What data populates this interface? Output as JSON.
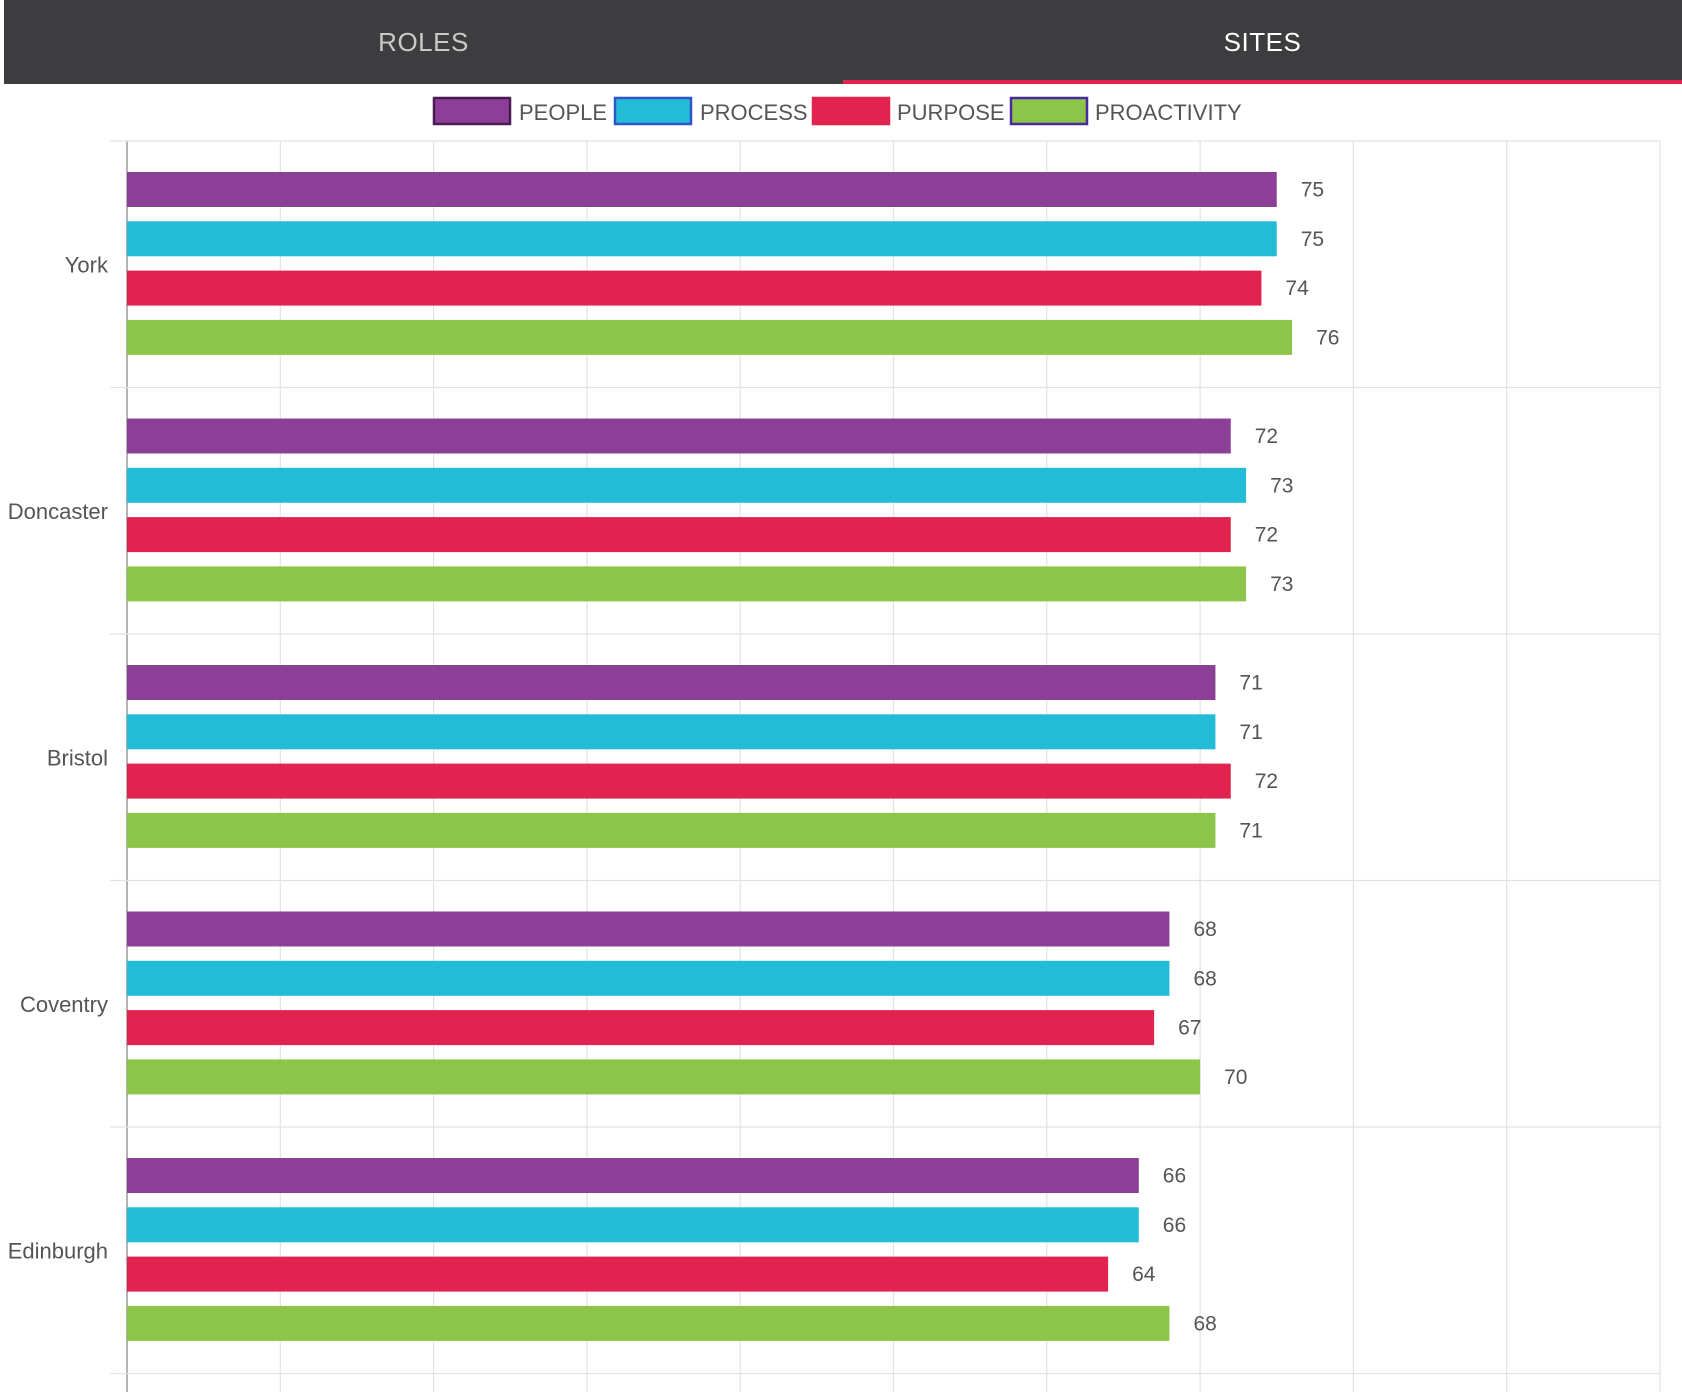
{
  "tabs": [
    {
      "label": "ROLES",
      "active": false
    },
    {
      "label": "SITES",
      "active": true
    }
  ],
  "colors": {
    "tabbar_bg": "#3d3d3f",
    "tab_active_underline": "#e2234f"
  },
  "chart_data": {
    "type": "bar",
    "orientation": "horizontal",
    "categories": [
      "York",
      "Doncaster",
      "Bristol",
      "Coventry",
      "Edinburgh"
    ],
    "series": [
      {
        "name": "PEOPLE",
        "color": "#8c3f97",
        "border": "#4a1a55",
        "values": [
          75,
          72,
          71,
          68,
          66
        ]
      },
      {
        "name": "PROCESS",
        "color": "#22bcd6",
        "border": "#2e55c9",
        "values": [
          75,
          73,
          71,
          68,
          66
        ]
      },
      {
        "name": "PURPOSE",
        "color": "#e2234f",
        "border": "#e2234f",
        "values": [
          74,
          72,
          72,
          67,
          64
        ]
      },
      {
        "name": "PROACTIVITY",
        "color": "#8dc54b",
        "border": "#4a2a9a",
        "values": [
          76,
          73,
          71,
          70,
          68
        ]
      }
    ],
    "xlim": [
      0,
      100
    ],
    "grid": true,
    "legend": "top-center",
    "data_labels": true
  }
}
